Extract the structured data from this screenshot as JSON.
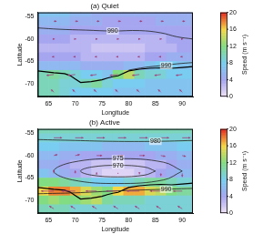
{
  "chart_data": [
    {
      "type": "heatmap",
      "title": "(a) Quiet",
      "x_label": "Longitude",
      "y_label": "Latitude",
      "xlim": [
        63,
        92
      ],
      "xticks": [
        65,
        70,
        75,
        80,
        85,
        90
      ],
      "ylim": [
        -73,
        -54
      ],
      "yticks": [
        -70,
        -65,
        -60,
        -55
      ],
      "grid": false,
      "cells": {
        "x": [
          64,
          66,
          68,
          70,
          72,
          74,
          76,
          78,
          80,
          82,
          84,
          86,
          88,
          90,
          92
        ],
        "y": [
          -54,
          -56,
          -58,
          -60,
          -62,
          -64,
          -66,
          -68,
          -70,
          -72
        ],
        "values": [
          [
            7,
            7,
            7,
            6,
            6,
            5,
            5,
            5,
            5,
            5,
            5,
            5,
            5,
            5,
            5
          ],
          [
            6,
            6,
            6,
            5,
            5,
            5,
            4,
            4,
            4,
            4,
            4,
            5,
            5,
            5,
            5
          ],
          [
            5,
            5,
            5,
            4,
            4,
            4,
            4,
            4,
            4,
            4,
            4,
            4,
            4,
            4,
            4
          ],
          [
            4,
            4,
            4,
            3,
            3,
            3,
            3,
            3,
            3,
            3,
            3,
            3,
            4,
            4,
            4
          ],
          [
            3,
            3,
            3,
            3,
            3,
            2,
            2,
            2,
            2,
            2,
            3,
            3,
            3,
            4,
            4
          ],
          [
            4,
            4,
            4,
            4,
            3,
            3,
            3,
            3,
            3,
            3,
            4,
            4,
            5,
            5,
            5
          ],
          [
            6,
            6,
            6,
            6,
            5,
            5,
            5,
            5,
            6,
            6,
            7,
            8,
            8,
            7,
            7
          ],
          [
            10,
            11,
            10,
            9,
            8,
            8,
            7,
            12,
            14,
            10,
            9,
            9,
            8,
            8,
            8
          ],
          [
            10,
            10,
            9,
            9,
            10,
            11,
            9,
            8,
            8,
            8,
            7,
            7,
            7,
            7,
            7
          ],
          [
            10,
            10,
            9,
            8,
            8,
            8,
            8,
            7,
            7,
            7,
            7,
            7,
            7,
            7,
            7
          ]
        ]
      },
      "colorbar": {
        "label": "Speed (m s⁻¹)",
        "range": [
          0,
          20
        ],
        "ticks": [
          0,
          4,
          8,
          12,
          16,
          20
        ]
      },
      "contours": [
        {
          "label": "990",
          "label_at": [
            77,
            -58.2
          ],
          "points": [
            [
              63,
              -57.5
            ],
            [
              67,
              -57.8
            ],
            [
              72,
              -58.0
            ],
            [
              77,
              -58.2
            ],
            [
              82,
              -58.1
            ],
            [
              86,
              -58.6
            ],
            [
              89,
              -59.5
            ],
            [
              92,
              -60.0
            ]
          ]
        },
        {
          "label": "990",
          "label_at": [
            87,
            -66.0
          ],
          "points": [
            [
              80,
              -67.0
            ],
            [
              83,
              -66.4
            ],
            [
              86,
              -66.0
            ],
            [
              89,
              -65.6
            ],
            [
              92,
              -65.3
            ]
          ]
        }
      ],
      "coastline": [
        [
          63,
          -67.2
        ],
        [
          66,
          -67.6
        ],
        [
          68,
          -67.8
        ],
        [
          69,
          -68.2
        ],
        [
          70,
          -69.0
        ],
        [
          71,
          -69.8
        ],
        [
          73,
          -69.6
        ],
        [
          75,
          -69.2
        ],
        [
          76,
          -68.8
        ],
        [
          77,
          -68.5
        ],
        [
          78,
          -68.3
        ],
        [
          80,
          -67.2
        ],
        [
          82,
          -66.8
        ],
        [
          84,
          -66.6
        ],
        [
          86,
          -66.5
        ],
        [
          88,
          -66.6
        ],
        [
          90,
          -66.4
        ],
        [
          92,
          -66.2
        ]
      ],
      "vectors": {
        "x": [
          66,
          70,
          74,
          78,
          82,
          86,
          90
        ],
        "y": [
          -56,
          -60,
          -64,
          -68,
          -72
        ],
        "u": [
          [
            3,
            3,
            3,
            3,
            3,
            3,
            3
          ],
          [
            1,
            1,
            1,
            1,
            1,
            1,
            1
          ],
          [
            -2,
            -2,
            -2,
            -2,
            -2,
            -2,
            -2
          ],
          [
            -8,
            -8,
            -7,
            -9,
            -8,
            -7,
            -7
          ],
          [
            -3,
            -3,
            -3,
            -3,
            -3,
            -3,
            -3
          ]
        ],
        "v": [
          [
            0,
            0,
            0,
            0,
            0,
            0,
            0
          ],
          [
            0,
            0,
            0,
            0,
            0,
            0,
            0
          ],
          [
            0,
            0,
            0,
            0,
            0,
            0,
            0
          ],
          [
            -1,
            -1,
            -1,
            -1,
            -1,
            -1,
            -1
          ],
          [
            3,
            3,
            3,
            3,
            3,
            3,
            3
          ]
        ]
      }
    },
    {
      "type": "heatmap",
      "title": "(b) Active",
      "x_label": "Longitude",
      "y_label": "Latitude",
      "xlim": [
        63,
        92
      ],
      "xticks": [
        65,
        70,
        75,
        80,
        85,
        90
      ],
      "ylim": [
        -73,
        -54
      ],
      "yticks": [
        -70,
        -65,
        -60,
        -55
      ],
      "grid": false,
      "cells": {
        "x": [
          64,
          66,
          68,
          70,
          72,
          74,
          76,
          78,
          80,
          82,
          84,
          86,
          88,
          90,
          92
        ],
        "y": [
          -54,
          -56,
          -58,
          -60,
          -62,
          -64,
          -66,
          -68,
          -70,
          -72
        ],
        "values": [
          [
            10,
            10,
            10,
            10,
            10,
            10,
            10,
            10,
            10,
            10,
            10,
            10,
            10,
            10,
            10
          ],
          [
            9,
            9,
            9,
            9,
            9,
            9,
            9,
            9,
            9,
            9,
            9,
            9,
            9,
            9,
            9
          ],
          [
            8,
            8,
            7,
            7,
            7,
            7,
            6,
            6,
            6,
            6,
            7,
            7,
            7,
            8,
            8
          ],
          [
            6,
            6,
            5,
            5,
            4,
            4,
            4,
            4,
            4,
            4,
            4,
            5,
            5,
            6,
            6
          ],
          [
            5,
            5,
            4,
            3,
            3,
            2,
            2,
            2,
            2,
            2,
            3,
            3,
            4,
            5,
            5
          ],
          [
            7,
            6,
            5,
            4,
            3,
            2,
            1,
            1,
            1,
            2,
            3,
            4,
            5,
            6,
            6
          ],
          [
            12,
            12,
            11,
            10,
            9,
            8,
            8,
            8,
            9,
            10,
            11,
            11,
            10,
            9,
            9
          ],
          [
            16,
            18,
            18,
            17,
            15,
            13,
            12,
            16,
            17,
            17,
            15,
            14,
            12,
            11,
            11
          ],
          [
            12,
            13,
            12,
            12,
            13,
            14,
            11,
            10,
            10,
            10,
            9,
            9,
            9,
            9,
            9
          ],
          [
            10,
            10,
            10,
            9,
            9,
            9,
            9,
            9,
            9,
            9,
            9,
            9,
            9,
            9,
            9
          ]
        ]
      },
      "colorbar": {
        "label": "Speed (m s⁻¹)",
        "range": [
          0,
          20
        ],
        "ticks": [
          0,
          4,
          8,
          12,
          16,
          20
        ]
      },
      "contours": [
        {
          "label": "980",
          "label_at": [
            85,
            -56.8
          ],
          "points": [
            [
              63,
              -56.4
            ],
            [
              70,
              -56.6
            ],
            [
              77,
              -56.8
            ],
            [
              85,
              -56.8
            ],
            [
              92,
              -56.6
            ]
          ]
        },
        {
          "label": "975",
          "label_at": [
            78,
            -60.7
          ],
          "points": [
            [
              90,
              -63.5
            ],
            [
              86.5,
              -61.5
            ],
            [
              78,
              -60.7
            ],
            [
              69.5,
              -61.5
            ],
            [
              66,
              -63.5
            ],
            [
              69.5,
              -65.5
            ],
            [
              78,
              -66.3
            ],
            [
              86.5,
              -65.5
            ],
            [
              90,
              -63.5
            ]
          ]
        },
        {
          "label": "970",
          "label_at": [
            78,
            -62.2
          ],
          "points": [
            [
              85,
              -63.5
            ],
            [
              83,
              -62.6
            ],
            [
              78,
              -62.2
            ],
            [
              73,
              -62.6
            ],
            [
              71,
              -63.5
            ],
            [
              73,
              -64.4
            ],
            [
              78,
              -64.8
            ],
            [
              83,
              -64.4
            ],
            [
              85,
              -63.5
            ]
          ]
        },
        {
          "label": "990",
          "label_at": [
            87,
            -67.6
          ],
          "points": [
            [
              63,
              -68.6
            ],
            [
              70,
              -68.4
            ],
            [
              77,
              -68.0
            ],
            [
              84,
              -67.7
            ],
            [
              92,
              -67.4
            ]
          ]
        }
      ],
      "coastline": [
        [
          63,
          -67.2
        ],
        [
          66,
          -67.6
        ],
        [
          68,
          -67.8
        ],
        [
          69,
          -68.2
        ],
        [
          70,
          -69.0
        ],
        [
          71,
          -69.8
        ],
        [
          73,
          -69.6
        ],
        [
          75,
          -69.2
        ],
        [
          76,
          -68.8
        ],
        [
          77,
          -68.5
        ],
        [
          78,
          -68.3
        ],
        [
          80,
          -67.2
        ],
        [
          82,
          -66.8
        ],
        [
          84,
          -66.6
        ],
        [
          86,
          -66.5
        ],
        [
          88,
          -66.6
        ],
        [
          90,
          -66.4
        ],
        [
          92,
          -66.2
        ]
      ],
      "vectors": {
        "x": [
          66,
          70,
          74,
          78,
          82,
          86,
          90
        ],
        "y": [
          -56,
          -60,
          -64,
          -68,
          -72
        ],
        "u": [
          [
            9,
            9,
            9,
            9,
            9,
            9,
            9
          ],
          [
            4,
            5,
            6,
            6,
            6,
            5,
            4
          ],
          [
            0,
            0,
            0,
            0,
            0,
            0,
            0
          ],
          [
            -14,
            -15,
            -12,
            -13,
            -14,
            -12,
            -10
          ],
          [
            -5,
            -5,
            -5,
            -5,
            -5,
            -5,
            -5
          ]
        ],
        "v": [
          [
            0,
            0,
            0,
            0,
            0,
            0,
            0
          ],
          [
            1,
            1,
            0,
            0,
            0,
            -1,
            -1
          ],
          [
            4,
            3,
            1,
            0,
            -1,
            -3,
            -4
          ],
          [
            0,
            0,
            0,
            0,
            0,
            0,
            0
          ],
          [
            3,
            3,
            3,
            3,
            3,
            3,
            3
          ]
        ]
      }
    }
  ]
}
